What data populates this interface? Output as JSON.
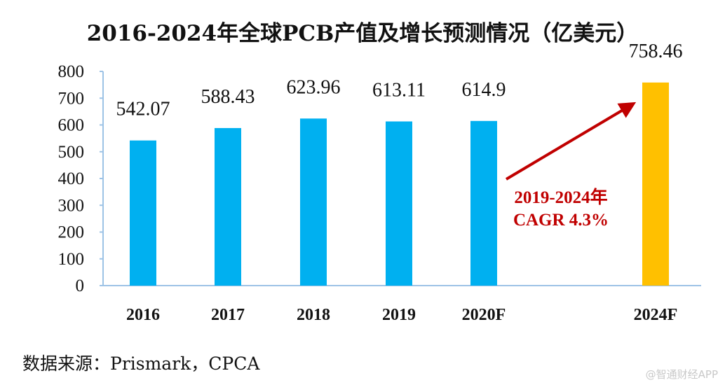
{
  "chart_data": {
    "type": "bar",
    "title": "2016-2024年全球PCB产值及增长预测情况（亿美元）",
    "categories": [
      "2016",
      "2017",
      "2018",
      "2019",
      "2020F",
      "2024F"
    ],
    "values": [
      542.07,
      588.43,
      623.96,
      613.11,
      614.9,
      758.46
    ],
    "value_labels": [
      "542.07",
      "588.43",
      "623.96",
      "613.11",
      "614.9",
      "758.46"
    ],
    "ylim": [
      0,
      800
    ],
    "yticks": [
      "0",
      "100",
      "200",
      "300",
      "400",
      "500",
      "600",
      "700",
      "800"
    ],
    "xlabel": "",
    "ylabel": "",
    "colors": {
      "actual": "#00b0f0",
      "forecast": "#ffc000",
      "arrow": "#c00000"
    },
    "annotation": {
      "line1": "2019-2024年",
      "line2": "CAGR 4.3%"
    }
  },
  "source": "数据来源：Prismark，CPCA",
  "watermark": "@智通财经APP"
}
